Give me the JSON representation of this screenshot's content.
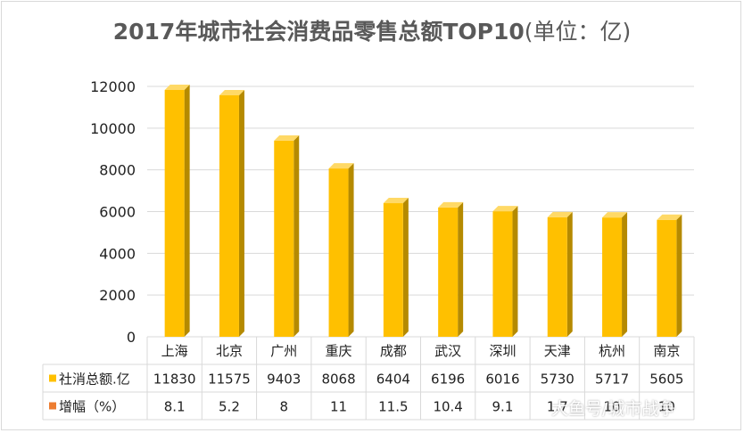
{
  "title": {
    "main": "2017年城市社会消费品零售总额TOP10",
    "unit": "(单位：亿)"
  },
  "watermark": "大鱼号/城市战争",
  "colors": {
    "bar": "#FFC000",
    "bar_side": "#B58A00",
    "bar_top": "#FFD966",
    "growth": "#ED7D31",
    "grid": "#D9D9D9"
  },
  "chart_data": {
    "type": "bar",
    "title": "2017年城市社会消费品零售总额TOP10(单位：亿)",
    "categories": [
      "上海",
      "北京",
      "广州",
      "重庆",
      "成都",
      "武汉",
      "深圳",
      "天津",
      "杭州",
      "南京"
    ],
    "series": [
      {
        "name": "社消总额.亿",
        "values": [
          11830,
          11575,
          9403,
          8068,
          6404,
          6196,
          6016,
          5730,
          5717,
          5605
        ]
      }
    ],
    "table_rows": [
      {
        "name": "社消总额.亿",
        "values": [
          "11830",
          "11575",
          "9403",
          "8068",
          "6404",
          "6196",
          "6016",
          "5730",
          "5717",
          "5605"
        ]
      },
      {
        "name": "增幅（%）",
        "values": [
          "8.1",
          "5.2",
          "8",
          "11",
          "11.5",
          "10.4",
          "9.1",
          "1.7",
          "10",
          "10"
        ]
      }
    ],
    "ylim": [
      0,
      12000
    ],
    "yticks": [
      0,
      2000,
      4000,
      6000,
      8000,
      10000,
      12000
    ],
    "grid": true,
    "legend": "data-table"
  }
}
